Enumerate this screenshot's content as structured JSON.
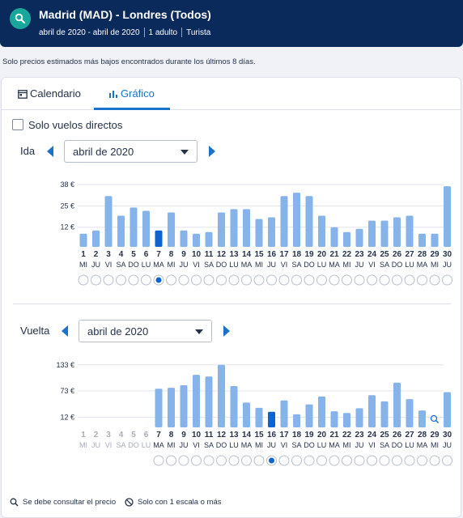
{
  "header": {
    "route": "Madrid (MAD) - Londres (Todos)",
    "dates": "abril de 2020 - abril de 2020",
    "travellers": "1 adulto",
    "cabin": "Turista",
    "bg_color": "#0b2a5c",
    "search_icon": "search-icon"
  },
  "notice": "Solo precios estimados más bajos encontrados durante los últimos 8 días.",
  "tabs": [
    {
      "label": "Calendario",
      "icon": "calendar-icon",
      "active": false
    },
    {
      "label": "Gráfico",
      "icon": "bar-chart-icon",
      "active": true
    }
  ],
  "direct_only": {
    "label": "Solo vuelos directos",
    "checked": false
  },
  "outbound": {
    "label": "Ida",
    "month": "abril de 2020"
  },
  "return": {
    "label": "Vuelta",
    "month": "abril de 2020"
  },
  "legend": [
    {
      "icon": "magnifier-icon",
      "text": "Se debe consultar el precio"
    },
    {
      "icon": "no-entry-icon",
      "text": "Solo con 1 escala o más"
    }
  ],
  "colors": {
    "bar": "#86b3ea",
    "bar_selected": "#0d63d2",
    "accent": "#1a73c9",
    "teal": "#18a89b"
  },
  "chart_data": [
    {
      "type": "bar",
      "name": "Ida",
      "yticks": [
        "38 €",
        "25 €",
        "12 €"
      ],
      "ytick_values": [
        38,
        25,
        12
      ],
      "ylim": [
        0,
        40
      ],
      "x": [
        "1",
        "2",
        "3",
        "4",
        "5",
        "6",
        "7",
        "8",
        "9",
        "10",
        "11",
        "12",
        "13",
        "14",
        "15",
        "16",
        "17",
        "18",
        "19",
        "20",
        "21",
        "22",
        "23",
        "24",
        "25",
        "26",
        "27",
        "28",
        "29",
        "30"
      ],
      "weekdays": [
        "MI",
        "JU",
        "VI",
        "SA",
        "DO",
        "LU",
        "MA",
        "MI",
        "JU",
        "VI",
        "SA",
        "DO",
        "LU",
        "MA",
        "MI",
        "JU",
        "VI",
        "SA",
        "DO",
        "LU",
        "MA",
        "MI",
        "JU",
        "VI",
        "SA",
        "DO",
        "LU",
        "MA",
        "MI",
        "JU"
      ],
      "values": [
        8,
        10,
        31,
        19,
        24,
        22,
        10,
        21,
        10,
        8,
        9,
        21,
        23,
        23,
        17,
        18,
        31,
        33,
        31,
        19,
        12,
        9,
        11,
        16,
        16,
        18,
        19,
        8,
        8,
        37
      ],
      "selected_index": 6,
      "unavailable": []
    },
    {
      "type": "bar",
      "name": "Vuelta",
      "yticks": [
        "133 €",
        "73 €",
        "12 €"
      ],
      "ytick_values": [
        133,
        73,
        12
      ],
      "ylim": [
        -11,
        140
      ],
      "x": [
        "1",
        "2",
        "3",
        "4",
        "5",
        "6",
        "7",
        "8",
        "9",
        "10",
        "11",
        "12",
        "13",
        "14",
        "15",
        "16",
        "17",
        "18",
        "19",
        "20",
        "21",
        "22",
        "23",
        "24",
        "25",
        "26",
        "27",
        "28",
        "29",
        "30"
      ],
      "weekdays": [
        "MI",
        "JU",
        "VI",
        "SA",
        "DO",
        "LU",
        "MA",
        "MI",
        "JU",
        "VI",
        "SA",
        "DO",
        "LU",
        "MA",
        "MI",
        "JU",
        "VI",
        "SA",
        "DO",
        "LU",
        "MA",
        "MI",
        "JU",
        "VI",
        "SA",
        "DO",
        "LU",
        "MA",
        "MI",
        "JU"
      ],
      "values": [
        null,
        null,
        null,
        null,
        null,
        null,
        78,
        80,
        86,
        110,
        106,
        133,
        84,
        46,
        34,
        25,
        51,
        19,
        42,
        60,
        26,
        22,
        33,
        63,
        49,
        92,
        54,
        28,
        null,
        70
      ],
      "selected_index": 15,
      "unavailable": [
        0,
        1,
        2,
        3,
        4,
        5
      ],
      "consult_price_index": 28
    }
  ]
}
